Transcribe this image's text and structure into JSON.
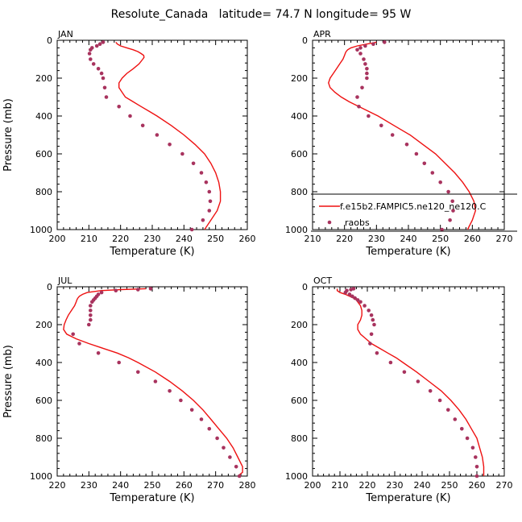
{
  "figure": {
    "title": "Resolute_Canada   latitude= 74.7 N longitude= 95 W"
  },
  "legend": {
    "model_label": "f.e15b2.FAMPIC5.ne120_ne120.C",
    "obs_label": "raobs"
  },
  "colors": {
    "model_line": "#ee1111",
    "obs_marker": "#a8335e"
  },
  "chart_data": [
    {
      "type": "line",
      "panel_label": "JAN",
      "xlabel": "Temperature (K)",
      "ylabel": "Pressure (mb)",
      "xlim": [
        200,
        260
      ],
      "ylim": [
        1000,
        0
      ],
      "xticks": [
        "200",
        "210",
        "220",
        "230",
        "240",
        "250",
        "260"
      ],
      "yticks": [
        "0",
        "200",
        "400",
        "600",
        "800",
        "1000"
      ],
      "series": [
        {
          "kind": "line",
          "label_ref": "legend.model_label",
          "pressure": [
            10,
            20,
            30,
            40,
            50,
            60,
            70,
            80,
            90,
            100,
            125,
            150,
            175,
            200,
            225,
            250,
            275,
            300,
            325,
            350,
            375,
            400,
            450,
            500,
            550,
            600,
            650,
            700,
            750,
            800,
            850,
            900,
            950,
            1000
          ],
          "temperature": [
            218.5,
            219.0,
            220.0,
            222.0,
            224.0,
            225.5,
            226.5,
            227.3,
            227.4,
            227.0,
            225.8,
            224.0,
            222.0,
            220.5,
            219.5,
            219.5,
            220.5,
            221.5,
            224.0,
            226.5,
            229.0,
            231.5,
            236.0,
            240.0,
            243.5,
            246.5,
            248.5,
            250.0,
            251.0,
            251.5,
            251.5,
            250.5,
            248.5,
            246.5
          ]
        },
        {
          "kind": "points",
          "label_ref": "legend.obs_label",
          "pressure": [
            10,
            20,
            30,
            40,
            50,
            70,
            100,
            125,
            150,
            175,
            200,
            250,
            300,
            350,
            400,
            450,
            500,
            550,
            600,
            650,
            700,
            750,
            800,
            850,
            900,
            950,
            1000
          ],
          "temperature": [
            214.5,
            213.5,
            212.5,
            211.0,
            210.5,
            210.2,
            210.5,
            211.5,
            213.0,
            214.0,
            214.5,
            215.0,
            215.5,
            219.5,
            223.0,
            227.0,
            231.5,
            235.5,
            239.5,
            243.0,
            245.5,
            247.0,
            248.0,
            248.3,
            248.0,
            246.0,
            242.5
          ]
        }
      ]
    },
    {
      "type": "line",
      "panel_label": "APR",
      "xlabel": "Temperature (K)",
      "ylabel": "",
      "xlim": [
        210,
        270
      ],
      "ylim": [
        1000,
        0
      ],
      "xticks": [
        "210",
        "220",
        "230",
        "240",
        "250",
        "260",
        "270"
      ],
      "yticks": [
        "0",
        "200",
        "400",
        "600",
        "800",
        "1000"
      ],
      "series": [
        {
          "kind": "line",
          "label_ref": "legend.model_label",
          "pressure": [
            10,
            20,
            30,
            40,
            50,
            60,
            70,
            80,
            100,
            125,
            150,
            175,
            200,
            225,
            250,
            275,
            300,
            325,
            350,
            375,
            400,
            450,
            500,
            550,
            600,
            650,
            700,
            750,
            800,
            850,
            900,
            950,
            1000
          ],
          "temperature": [
            230.0,
            227.0,
            224.0,
            222.0,
            221.0,
            220.5,
            220.2,
            220.0,
            219.5,
            218.5,
            217.5,
            216.5,
            215.5,
            215.0,
            215.5,
            217.0,
            219.0,
            221.5,
            224.5,
            227.5,
            230.5,
            235.5,
            240.5,
            244.5,
            248.5,
            251.5,
            254.5,
            257.0,
            259.0,
            260.5,
            261.0,
            260.0,
            258.5
          ]
        },
        {
          "kind": "points",
          "label_ref": "legend.obs_label",
          "pressure": [
            10,
            20,
            30,
            40,
            50,
            70,
            100,
            125,
            150,
            175,
            200,
            250,
            300,
            350,
            400,
            450,
            500,
            550,
            600,
            650,
            700,
            750,
            800,
            850,
            900,
            950,
            1000
          ],
          "temperature": [
            232.5,
            229.0,
            226.5,
            225.0,
            224.0,
            225.0,
            226.0,
            226.5,
            227.0,
            227.0,
            227.0,
            225.5,
            224.0,
            224.5,
            227.5,
            231.5,
            235.0,
            239.5,
            242.5,
            245.0,
            247.5,
            250.0,
            252.5,
            253.8,
            254.0,
            253.0,
            250.5
          ]
        }
      ]
    },
    {
      "type": "line",
      "panel_label": "JUL",
      "xlabel": "Temperature (K)",
      "ylabel": "Pressure (mb)",
      "xlim": [
        220,
        280
      ],
      "ylim": [
        1000,
        0
      ],
      "xticks": [
        "220",
        "230",
        "240",
        "250",
        "260",
        "270",
        "280"
      ],
      "yticks": [
        "0",
        "200",
        "400",
        "600",
        "800",
        "1000"
      ],
      "series": [
        {
          "kind": "line",
          "label_ref": "legend.model_label",
          "pressure": [
            10,
            15,
            20,
            30,
            40,
            50,
            60,
            70,
            80,
            100,
            125,
            150,
            175,
            200,
            225,
            250,
            275,
            300,
            325,
            350,
            375,
            400,
            450,
            500,
            550,
            600,
            650,
            700,
            750,
            800,
            850,
            900,
            950,
            980,
            1000
          ],
          "temperature": [
            248.0,
            240.0,
            234.0,
            229.5,
            228.0,
            227.0,
            226.5,
            226.2,
            226.0,
            225.5,
            224.5,
            223.5,
            222.8,
            222.2,
            222.0,
            223.0,
            226.0,
            230.0,
            234.5,
            239.0,
            242.5,
            245.5,
            251.0,
            255.5,
            259.5,
            263.0,
            266.0,
            268.5,
            271.0,
            273.5,
            275.5,
            277.0,
            278.5,
            278.5,
            277.0
          ]
        },
        {
          "kind": "points",
          "label_ref": "legend.obs_label",
          "pressure": [
            10,
            15,
            20,
            30,
            40,
            50,
            60,
            70,
            80,
            100,
            125,
            150,
            175,
            200,
            250,
            300,
            350,
            400,
            450,
            500,
            550,
            600,
            650,
            700,
            750,
            800,
            850,
            900,
            950,
            1000
          ],
          "temperature": [
            249.5,
            245.5,
            238.5,
            234.0,
            233.0,
            232.5,
            232.0,
            231.5,
            231.0,
            230.5,
            230.5,
            230.5,
            230.5,
            230.0,
            225.0,
            227.0,
            233.0,
            239.5,
            245.5,
            251.0,
            255.5,
            259.0,
            262.5,
            265.5,
            268.0,
            270.5,
            272.5,
            274.5,
            276.5,
            277.5
          ]
        }
      ]
    },
    {
      "type": "line",
      "panel_label": "OCT",
      "xlabel": "Temperature (K)",
      "ylabel": "",
      "xlim": [
        200,
        270
      ],
      "ylim": [
        1000,
        0
      ],
      "xticks": [
        "200",
        "210",
        "220",
        "230",
        "240",
        "250",
        "260",
        "270"
      ],
      "yticks": [
        "0",
        "200",
        "400",
        "600",
        "800",
        "1000"
      ],
      "series": [
        {
          "kind": "line",
          "label_ref": "legend.model_label",
          "pressure": [
            10,
            20,
            30,
            40,
            50,
            60,
            70,
            80,
            100,
            125,
            150,
            175,
            200,
            225,
            250,
            275,
            300,
            325,
            350,
            375,
            400,
            450,
            500,
            550,
            600,
            650,
            700,
            750,
            800,
            850,
            900,
            950,
            1000
          ],
          "temperature": [
            209.0,
            209.0,
            210.0,
            212.0,
            213.5,
            215.0,
            216.0,
            216.5,
            217.5,
            218.0,
            218.0,
            217.5,
            216.5,
            216.5,
            217.5,
            219.5,
            221.5,
            224.5,
            227.5,
            230.5,
            233.0,
            238.0,
            242.5,
            247.0,
            250.5,
            253.5,
            256.0,
            258.0,
            260.0,
            261.0,
            262.0,
            262.5,
            262.5
          ]
        },
        {
          "kind": "points",
          "label_ref": "legend.obs_label",
          "pressure": [
            10,
            15,
            20,
            30,
            40,
            50,
            60,
            70,
            80,
            100,
            125,
            150,
            175,
            200,
            250,
            300,
            350,
            400,
            450,
            500,
            550,
            600,
            650,
            700,
            750,
            800,
            850,
            900,
            950,
            1000
          ],
          "temperature": [
            215.0,
            214.0,
            212.5,
            212.0,
            213.5,
            214.5,
            215.5,
            216.5,
            217.5,
            219.0,
            220.5,
            221.5,
            222.0,
            222.5,
            221.5,
            221.0,
            223.5,
            228.5,
            233.5,
            238.5,
            243.0,
            246.5,
            249.5,
            252.0,
            254.5,
            256.5,
            258.5,
            259.5,
            260.0,
            260.0
          ]
        }
      ]
    }
  ]
}
